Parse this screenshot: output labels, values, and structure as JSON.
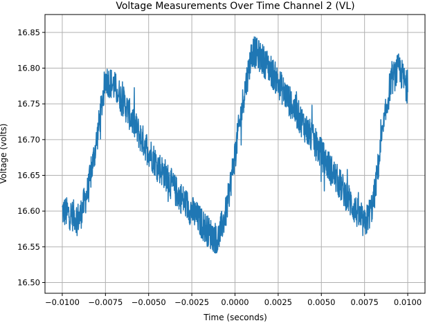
{
  "chart_data": {
    "type": "line",
    "title": "Voltage Measurements Over Time Channel 2 (VL)",
    "xlabel": "Time (seconds)",
    "ylabel": "Voltage (volts)",
    "xlim": [
      -0.011,
      0.011
    ],
    "ylim": [
      16.485,
      16.875
    ],
    "xticks": [
      -0.01,
      -0.0075,
      -0.005,
      -0.0025,
      0.0,
      0.0025,
      0.005,
      0.0075,
      0.01
    ],
    "xtick_labels": [
      "−0.0100",
      "−0.0075",
      "−0.0050",
      "−0.0025",
      "0.0000",
      "0.0025",
      "0.0050",
      "0.0075",
      "0.0100"
    ],
    "yticks": [
      16.5,
      16.55,
      16.6,
      16.65,
      16.7,
      16.75,
      16.8,
      16.85
    ],
    "ytick_labels": [
      "16.50",
      "16.55",
      "16.60",
      "16.65",
      "16.70",
      "16.75",
      "16.80",
      "16.85"
    ],
    "grid": true,
    "series_color": "#1f77b4",
    "series": [
      {
        "x": [
          -0.01,
          -0.0095,
          -0.009,
          -0.0085,
          -0.008,
          -0.0075,
          -0.007,
          -0.0065,
          -0.006,
          -0.0055,
          -0.005,
          -0.0045,
          -0.004,
          -0.0035,
          -0.003,
          -0.0025,
          -0.002,
          -0.0015,
          -0.001,
          -0.0005,
          0.0,
          0.0005,
          0.001,
          0.0015,
          0.002,
          0.0025,
          0.003,
          0.0035,
          0.004,
          0.0045,
          0.005,
          0.0055,
          0.006,
          0.0065,
          0.007,
          0.0075,
          0.008,
          0.0085,
          0.009,
          0.0095,
          0.01
        ],
        "y": [
          16.6,
          16.595,
          16.59,
          16.63,
          16.7,
          16.785,
          16.775,
          16.755,
          16.73,
          16.705,
          16.685,
          16.665,
          16.65,
          16.63,
          16.615,
          16.6,
          16.585,
          16.57,
          16.56,
          16.6,
          16.68,
          16.76,
          16.825,
          16.815,
          16.8,
          16.78,
          16.76,
          16.74,
          16.72,
          16.7,
          16.68,
          16.66,
          16.64,
          16.62,
          16.6,
          16.58,
          16.61,
          16.7,
          16.78,
          16.8,
          16.77
        ]
      }
    ]
  }
}
